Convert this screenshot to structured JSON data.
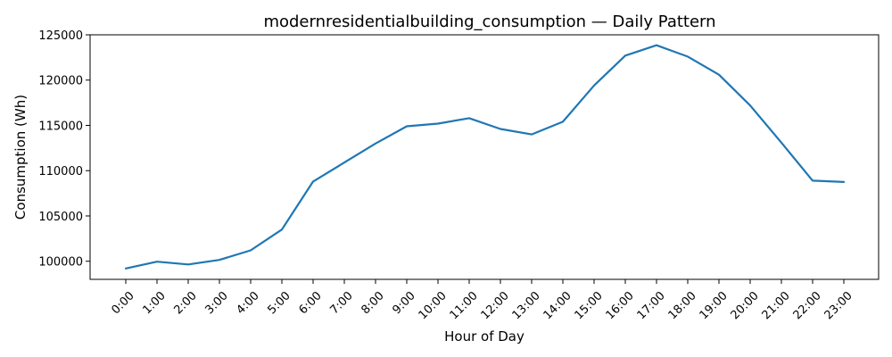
{
  "chart_data": {
    "type": "line",
    "title": "modernresidentialbuilding_consumption — Daily Pattern",
    "xlabel": "Hour of Day",
    "ylabel": "Consumption (Wh)",
    "categories": [
      "0:00",
      "1:00",
      "2:00",
      "3:00",
      "4:00",
      "5:00",
      "6:00",
      "7:00",
      "8:00",
      "9:00",
      "10:00",
      "11:00",
      "12:00",
      "13:00",
      "14:00",
      "15:00",
      "16:00",
      "17:00",
      "18:00",
      "19:00",
      "20:00",
      "21:00",
      "22:00",
      "23:00"
    ],
    "series": [
      {
        "values": [
          99200,
          99950,
          99650,
          100150,
          101200,
          103500,
          108800,
          110900,
          113000,
          114900,
          115200,
          115800,
          114600,
          114000,
          115400,
          119400,
          122700,
          123850,
          122600,
          120600,
          117200,
          113100,
          108900,
          108750
        ],
        "color": "#1f77b4"
      }
    ],
    "ylim": [
      98000,
      125000
    ],
    "yticks": [
      100000,
      105000,
      110000,
      115000,
      120000,
      125000
    ],
    "grid": false,
    "legend": "none"
  }
}
